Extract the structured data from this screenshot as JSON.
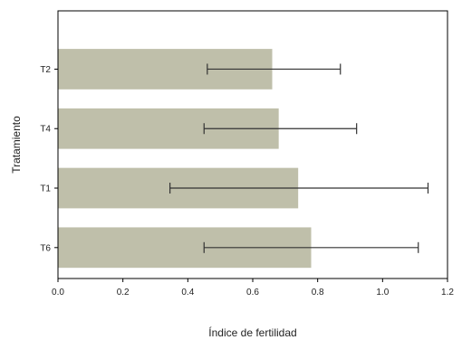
{
  "chart_data": {
    "type": "bar",
    "orientation": "horizontal",
    "xlabel": "Índice de fertilidad",
    "ylabel": "Tratamiento",
    "xlim": [
      0,
      1.2
    ],
    "x_ticks": [
      "0.0",
      "0.2",
      "0.4",
      "0.6",
      "0.8",
      "1.0",
      "1.2"
    ],
    "categories": [
      "T2",
      "T4",
      "T1",
      "T6"
    ],
    "values": [
      0.66,
      0.68,
      0.74,
      0.78
    ],
    "error_low": [
      0.46,
      0.45,
      0.345,
      0.45
    ],
    "error_high": [
      0.87,
      0.92,
      1.14,
      1.11
    ],
    "grid": false,
    "colors": {
      "bar": "#bfbfaa",
      "errorbar": "#333333",
      "frame": "#000000"
    }
  }
}
